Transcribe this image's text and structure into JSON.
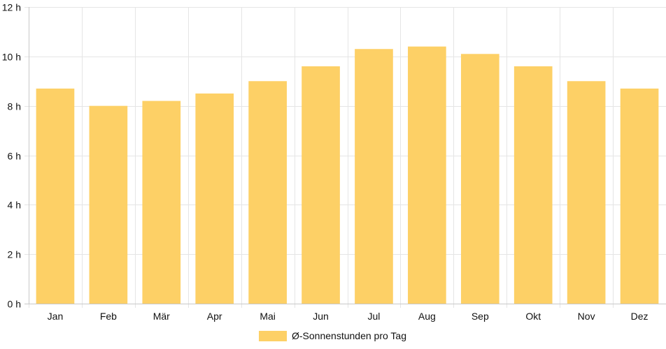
{
  "chart_data": {
    "type": "bar",
    "categories": [
      "Jan",
      "Feb",
      "Mär",
      "Apr",
      "Mai",
      "Jun",
      "Jul",
      "Aug",
      "Sep",
      "Okt",
      "Nov",
      "Dez"
    ],
    "series": [
      {
        "name": "Ø-Sonnenstunden pro Tag",
        "values": [
          8.7,
          8.0,
          8.2,
          8.5,
          9.0,
          9.6,
          10.3,
          10.4,
          10.1,
          9.6,
          9.0,
          8.7
        ]
      }
    ],
    "ylim": [
      0,
      12
    ],
    "y_ticks": [
      0,
      2,
      4,
      6,
      8,
      10,
      12
    ],
    "y_unit_suffix": " h",
    "grid": true,
    "legend_position": "bottom",
    "colors": {
      "bar": "#fdd066",
      "grid": "#e5e5e5",
      "axis": "#c8c8c8"
    }
  }
}
